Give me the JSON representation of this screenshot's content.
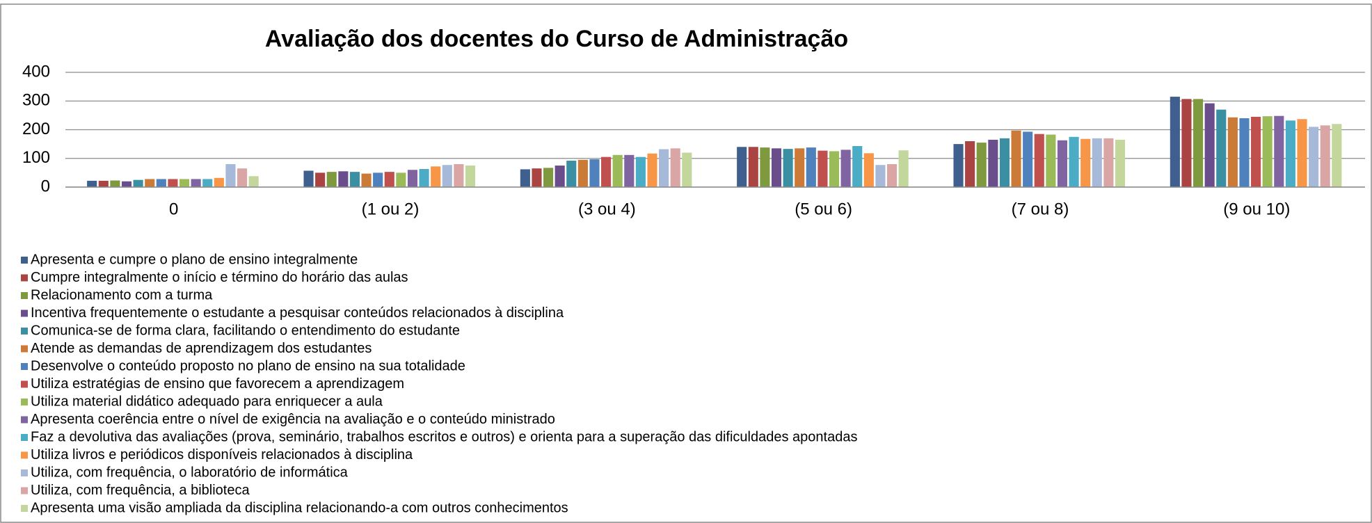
{
  "chart_data": {
    "type": "bar",
    "title": "Avaliação dos docentes do Curso de Administração",
    "categories": [
      "0",
      "(1 ou 2)",
      "(3 ou 4)",
      "(5 ou 6)",
      "(7 ou 8)",
      "(9 ou 10)"
    ],
    "ylim": [
      0,
      400
    ],
    "yticks": [
      0,
      100,
      200,
      300,
      400
    ],
    "grid": true,
    "legend": "bottom",
    "series": [
      {
        "name": "Apresenta e cumpre o plano de ensino integralmente",
        "color": "#3F5F8F",
        "values": [
          22,
          57,
          62,
          140,
          150,
          315
        ]
      },
      {
        "name": "Cumpre integralmente o início e término do horário das aulas",
        "color": "#A94442",
        "values": [
          22,
          50,
          65,
          140,
          160,
          307
        ]
      },
      {
        "name": "Relacionamento com a turma",
        "color": "#7F993E",
        "values": [
          23,
          53,
          67,
          138,
          155,
          307
        ]
      },
      {
        "name": "Incentiva frequentemente o estudante a pesquisar conteúdos relacionados à disciplina",
        "color": "#6A4E8B",
        "values": [
          20,
          55,
          75,
          135,
          165,
          292
        ]
      },
      {
        "name": "Comunica-se de forma clara, facilitando o entendimento do estudante",
        "color": "#3A8FA3",
        "values": [
          25,
          53,
          92,
          133,
          170,
          270
        ]
      },
      {
        "name": "Atende as demandas de aprendizagem dos estudantes",
        "color": "#CC7A37",
        "values": [
          28,
          47,
          95,
          135,
          197,
          243
        ]
      },
      {
        "name": "Desenvolve o conteúdo proposto no plano de ensino na sua totalidade",
        "color": "#4F81BD",
        "values": [
          28,
          50,
          97,
          138,
          193,
          240
        ]
      },
      {
        "name": "Utiliza estratégias de ensino que favorecem a aprendizagem",
        "color": "#C0504D",
        "values": [
          28,
          53,
          105,
          127,
          185,
          245
        ]
      },
      {
        "name": "Utiliza material didático adequado para enriquecer a aula",
        "color": "#9BBB59",
        "values": [
          28,
          50,
          112,
          125,
          183,
          247
        ]
      },
      {
        "name": "Apresenta coerência entre o nível de exigência na avaliação e o conteúdo ministrado",
        "color": "#8064A2",
        "values": [
          28,
          60,
          112,
          130,
          163,
          248
        ]
      },
      {
        "name": "Faz a devolutiva das avaliações (prova, seminário, trabalhos escritos e outros) e orienta para a superação das dificuldades apontadas",
        "color": "#4BACC6",
        "values": [
          28,
          63,
          105,
          143,
          175,
          232
        ]
      },
      {
        "name": "Utiliza livros e periódicos disponíveis relacionados à disciplina",
        "color": "#F79646",
        "values": [
          32,
          72,
          117,
          118,
          168,
          237
        ]
      },
      {
        "name": "Utiliza, com frequência, o laboratório de informática",
        "color": "#A7B9D9",
        "values": [
          80,
          77,
          132,
          77,
          170,
          210
        ]
      },
      {
        "name": "Utiliza, com frequência, a biblioteca",
        "color": "#D9A6A5",
        "values": [
          65,
          80,
          135,
          80,
          170,
          215
        ]
      },
      {
        "name": "Apresenta uma visão ampliada da disciplina relacionando-a com outros conhecimentos",
        "color": "#C3D69B",
        "values": [
          38,
          75,
          120,
          128,
          165,
          220
        ]
      }
    ]
  }
}
